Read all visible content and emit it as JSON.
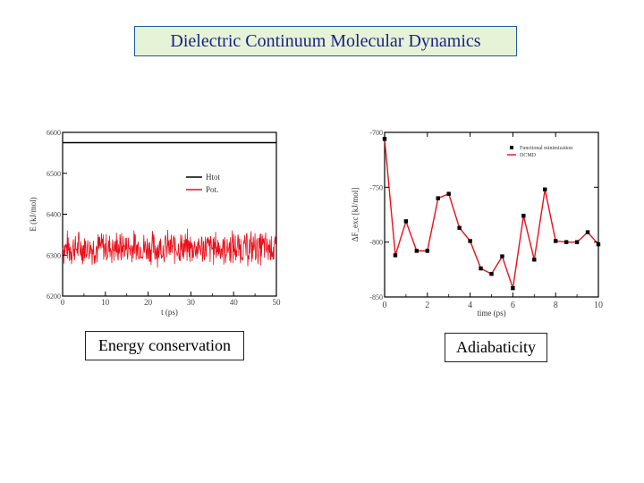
{
  "title": "Dielectric Continuum Molecular Dynamics",
  "captions": {
    "left": "Energy conservation",
    "right": "Adiabaticity"
  },
  "colors": {
    "red": "#e8101a",
    "black": "#000000",
    "title_text": "#1a1f8a",
    "title_bg": "#e6f3d6"
  },
  "chart_data": [
    {
      "type": "line",
      "title": "",
      "xlabel": "t (ps)",
      "ylabel": "E (kJ/mol)",
      "xlim": [
        0,
        50
      ],
      "ylim": [
        6200,
        6600
      ],
      "xticks": [
        0,
        10,
        20,
        30,
        40,
        50
      ],
      "yticks": [
        6200,
        6300,
        6400,
        6500,
        6600
      ],
      "legend_position": "right",
      "series": [
        {
          "name": "Htot",
          "color": "#000000",
          "constant": 6575
        },
        {
          "name": "Pot.",
          "color": "#e8101a",
          "mean": 6318,
          "amplitude": 45
        }
      ]
    },
    {
      "type": "line",
      "title": "",
      "xlabel": "time (ps)",
      "ylabel": "ΔF_exc [kJ/mol]",
      "xlim": [
        0,
        10
      ],
      "ylim": [
        -850,
        -700
      ],
      "xticks": [
        0,
        2,
        4,
        6,
        8,
        10
      ],
      "yticks": [
        -700,
        -750,
        -800,
        -850
      ],
      "legend_position": "top-right",
      "series": [
        {
          "name": "Functional minimization",
          "color": "#000000",
          "x": [
            0,
            0.5,
            1,
            1.5,
            2,
            2.5,
            3,
            3.5,
            4,
            4.5,
            5,
            5.5,
            6,
            6.5,
            7,
            7.5,
            8,
            8.5,
            9,
            9.5,
            10
          ],
          "y": [
            -706,
            -812,
            -781,
            -808,
            -808,
            -760,
            -756,
            -787,
            -799,
            -824,
            -829,
            -813,
            -842,
            -776,
            -816,
            -752,
            -799,
            -800,
            -800,
            -791,
            -802
          ]
        },
        {
          "name": "DCMD",
          "color": "#e8101a",
          "x": [
            0,
            0.5,
            1,
            1.5,
            2,
            2.5,
            3,
            3.5,
            4,
            4.5,
            5,
            5.5,
            6,
            6.5,
            7,
            7.5,
            8,
            8.5,
            9,
            9.5,
            10
          ],
          "y": [
            -706,
            -812,
            -781,
            -808,
            -808,
            -760,
            -756,
            -787,
            -799,
            -824,
            -829,
            -813,
            -842,
            -776,
            -816,
            -752,
            -799,
            -800,
            -800,
            -791,
            -802
          ]
        }
      ]
    }
  ]
}
